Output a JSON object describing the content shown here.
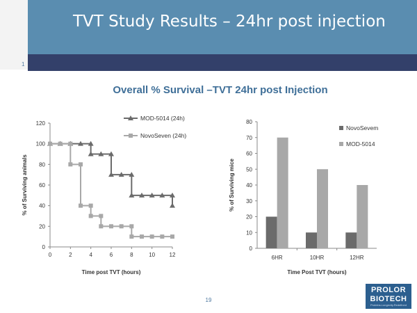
{
  "slide": {
    "title": "TVT Study Results – 24hr post injection",
    "subtitle": "Overall %  Survival –TVT 24hr post Injection",
    "slide_number_left": "1",
    "page_number": "19",
    "logo": {
      "line1": "PROLOR",
      "line2": "BIOTECH",
      "tagline": "Proteins.Longevity.Redefined"
    }
  },
  "colors": {
    "header": "#5a8db0",
    "accent": "#33406a",
    "dark_series": "#6b6b6b",
    "light_series": "#a8a8a8"
  },
  "chart_data": [
    {
      "type": "line",
      "title": "",
      "xlabel": "Time post TVT (hours)",
      "ylabel": "% of Surviving animals",
      "xlim": [
        0,
        12
      ],
      "ylim": [
        0,
        120
      ],
      "xticks": [
        0,
        2,
        4,
        6,
        8,
        10,
        12
      ],
      "yticks": [
        0,
        20,
        40,
        60,
        80,
        100,
        120
      ],
      "legend": "top-right",
      "grid": false,
      "step": true,
      "series": [
        {
          "name": "MOD-5014 (24h)",
          "marker": "triangle",
          "points": [
            [
              0,
              100
            ],
            [
              1,
              100
            ],
            [
              2,
              100
            ],
            [
              3,
              100
            ],
            [
              4,
              100
            ],
            [
              4,
              90
            ],
            [
              5,
              90
            ],
            [
              6,
              90
            ],
            [
              6,
              70
            ],
            [
              7,
              70
            ],
            [
              8,
              70
            ],
            [
              8,
              50
            ],
            [
              9,
              50
            ],
            [
              10,
              50
            ],
            [
              11,
              50
            ],
            [
              12,
              50
            ],
            [
              12,
              40
            ]
          ]
        },
        {
          "name": "NovoSeven (24h)",
          "marker": "square",
          "points": [
            [
              0,
              100
            ],
            [
              1,
              100
            ],
            [
              2,
              100
            ],
            [
              2,
              80
            ],
            [
              3,
              80
            ],
            [
              3,
              40
            ],
            [
              4,
              40
            ],
            [
              4,
              30
            ],
            [
              5,
              30
            ],
            [
              5,
              20
            ],
            [
              6,
              20
            ],
            [
              7,
              20
            ],
            [
              8,
              20
            ],
            [
              8,
              10
            ],
            [
              9,
              10
            ],
            [
              10,
              10
            ],
            [
              11,
              10
            ],
            [
              12,
              10
            ]
          ]
        }
      ]
    },
    {
      "type": "bar",
      "title": "",
      "xlabel": "Time Post TVT (hours)",
      "ylabel": "% of Surviving mice",
      "categories": [
        "6HR",
        "10HR",
        "12HR"
      ],
      "ylim": [
        0,
        80
      ],
      "yticks": [
        0,
        10,
        20,
        30,
        40,
        50,
        60,
        70,
        80
      ],
      "legend": "top-right",
      "grid": false,
      "series": [
        {
          "name": "NovoSevem",
          "values": [
            20,
            10,
            10
          ]
        },
        {
          "name": "MOD-5014",
          "values": [
            70,
            50,
            40
          ]
        }
      ]
    }
  ]
}
